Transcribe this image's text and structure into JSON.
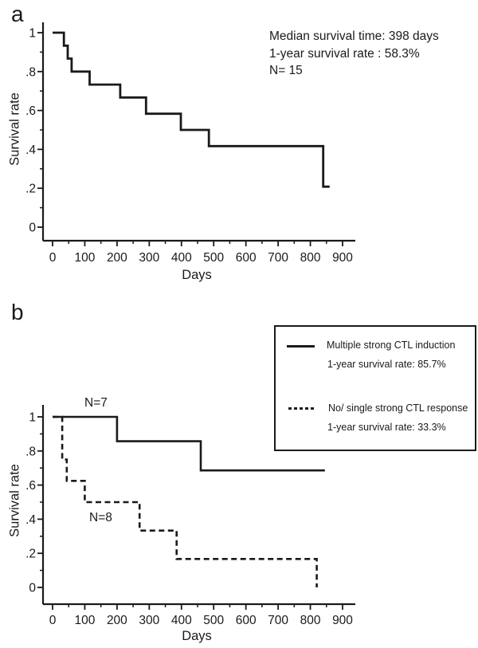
{
  "figure": {
    "background": "#ffffff",
    "ink_color": "#1a1a1a"
  },
  "panel_a": {
    "label": "a",
    "ylabel": "Survival rate",
    "xlabel": "Days",
    "annotation": {
      "line1": "Median survival time: 398 days",
      "line2": "1-year survival rate : 58.3%",
      "line3": "N= 15"
    }
  },
  "panel_b": {
    "label": "b",
    "ylabel": "Survival rate",
    "xlabel": "Days",
    "n_label_solid": "N=7",
    "n_label_dashed": "N=8",
    "legend": {
      "item1_label": "Multiple strong CTL induction",
      "item1_rate": "1-year survival rate: 85.7%",
      "item2_label": "No/ single strong CTL response",
      "item2_rate": "1-year survival rate: 33.3%"
    }
  },
  "chart_data": [
    {
      "panel": "a",
      "type": "line",
      "variant": "kaplan_meier_step",
      "title": "",
      "xlabel": "Days",
      "ylabel": "Survival rate",
      "xlim": [
        0,
        900
      ],
      "ylim": [
        0,
        1
      ],
      "x_ticks": [
        0,
        100,
        200,
        300,
        400,
        500,
        600,
        700,
        800,
        900
      ],
      "x_minor_ticks": [
        50,
        150,
        250,
        350,
        450,
        550,
        650,
        750,
        850
      ],
      "y_ticks": [
        1,
        0.8,
        0.6,
        0.4,
        0.2,
        0
      ],
      "y_tick_labels": [
        "1",
        ".8",
        ".6",
        ".4",
        ".2",
        "0"
      ],
      "y_minor_ticks": [
        0.9,
        0.7,
        0.5,
        0.3,
        0.1
      ],
      "grid": false,
      "legend_position": "none",
      "annotations": [
        "Median survival time: 398 days",
        "1-year survival rate : 58.3%",
        "N= 15"
      ],
      "n": 15,
      "median_survival_days": 398,
      "one_year_survival_rate_pct": 58.3,
      "series": [
        {
          "line_style": "solid",
          "color": "#1a1a1a",
          "steps": [
            [
              0,
              1
            ],
            [
              35,
              1
            ],
            [
              35,
              0.933
            ],
            [
              47,
              0.933
            ],
            [
              47,
              0.867
            ],
            [
              59,
              0.867
            ],
            [
              59,
              0.8
            ],
            [
              115,
              0.8
            ],
            [
              115,
              0.733
            ],
            [
              210,
              0.733
            ],
            [
              210,
              0.667
            ],
            [
              290,
              0.667
            ],
            [
              290,
              0.583
            ],
            [
              398,
              0.583
            ],
            [
              398,
              0.5
            ],
            [
              485,
              0.5
            ],
            [
              485,
              0.417
            ],
            [
              840,
              0.417
            ],
            [
              840,
              0.208
            ],
            [
              860,
              0.208
            ]
          ]
        }
      ]
    },
    {
      "panel": "b",
      "type": "line",
      "variant": "kaplan_meier_step",
      "title": "",
      "xlabel": "Days",
      "ylabel": "Survival rate",
      "xlim": [
        0,
        900
      ],
      "ylim": [
        0,
        1
      ],
      "x_ticks": [
        0,
        100,
        200,
        300,
        400,
        500,
        600,
        700,
        800,
        900
      ],
      "x_minor_ticks": [
        50,
        150,
        250,
        350,
        450,
        550,
        650,
        750,
        850
      ],
      "y_ticks": [
        1,
        0.8,
        0.6,
        0.4,
        0.2,
        0
      ],
      "y_tick_labels": [
        "1",
        ".8",
        ".6",
        ".4",
        ".2",
        "0"
      ],
      "y_minor_ticks": [
        0.9,
        0.7,
        0.5,
        0.3,
        0.1
      ],
      "grid": false,
      "legend_position": "top-right",
      "series": [
        {
          "name": "No/ single strong CTL response",
          "n_label": "N=8",
          "n": 8,
          "one_year_survival_rate_pct": 33.3,
          "line_style": "dashed",
          "color": "#1a1a1a",
          "steps": [
            [
              0,
              1
            ],
            [
              30,
              1
            ],
            [
              30,
              0.75
            ],
            [
              44,
              0.75
            ],
            [
              44,
              0.625
            ],
            [
              100,
              0.625
            ],
            [
              100,
              0.5
            ],
            [
              270,
              0.5
            ],
            [
              270,
              0.333
            ],
            [
              385,
              0.333
            ],
            [
              385,
              0.167
            ],
            [
              820,
              0.167
            ],
            [
              820,
              0
            ]
          ]
        },
        {
          "name": "Multiple strong CTL induction",
          "n_label": "N=7",
          "n": 7,
          "one_year_survival_rate_pct": 85.7,
          "line_style": "solid",
          "color": "#1a1a1a",
          "steps": [
            [
              0,
              1
            ],
            [
              200,
              1
            ],
            [
              200,
              0.857
            ],
            [
              460,
              0.857
            ],
            [
              460,
              0.686
            ],
            [
              845,
              0.686
            ]
          ]
        }
      ]
    }
  ]
}
